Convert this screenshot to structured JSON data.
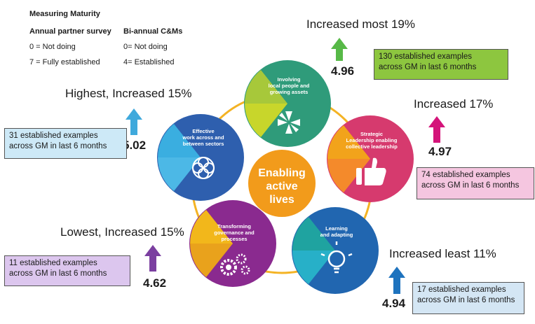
{
  "legend": {
    "title": "Measuring Maturity",
    "col1_header": "Annual partner survey",
    "col2_header": "Bi-annual C&Ms",
    "col1_rows": [
      "0 = Not doing",
      "7 = Fully established"
    ],
    "col2_rows": [
      "0= Not doing",
      "4= Established"
    ]
  },
  "center": {
    "lines": [
      "Enabling",
      "active",
      "lives"
    ]
  },
  "segments": [
    {
      "id": "involving",
      "lines": [
        "Involving",
        "local people and",
        "growing assets"
      ],
      "color": "#2f9b7a",
      "score": "4.96",
      "heading": "Increased most 19%",
      "arrow_color": "#57b947",
      "box": [
        "130 established examples",
        "across GM in last 6 months"
      ],
      "box_color": "#8dc63f"
    },
    {
      "id": "strategic",
      "lines": [
        "Strategic",
        "Leadership enabling",
        "collective leadership"
      ],
      "color": "#d63a6e",
      "score": "4.97",
      "heading": "Increased 17%",
      "arrow_color": "#d4147a",
      "box": [
        "74 established examples",
        "across GM in last 6 months"
      ],
      "box_color": "#f5c6e0"
    },
    {
      "id": "learning",
      "lines": [
        "Learning",
        "and adapting"
      ],
      "color": "#2166b0",
      "score": "4.94",
      "heading": "Increased least 11%",
      "arrow_color": "#1e73be",
      "box": [
        "17 established examples",
        "across GM in last 6 months"
      ],
      "box_color": "#d4e6f4"
    },
    {
      "id": "transforming",
      "lines": [
        "Transforming",
        "governance and",
        "processes"
      ],
      "color": "#8a2a8f",
      "score": "4.62",
      "heading": "Lowest, Increased 15%",
      "arrow_color": "#7b3fa0",
      "box": [
        "11 established examples",
        "across GM in last 6 months"
      ],
      "box_color": "#dcc6ee"
    },
    {
      "id": "effective",
      "lines": [
        "Effective",
        "work across and",
        "between sectors"
      ],
      "color": "#2e5fae",
      "score": "5.02",
      "heading": "Highest, Increased 15%",
      "arrow_color": "#3fa9dc",
      "box": [
        "31 established examples",
        "across GM in last 6 months"
      ],
      "box_color": "#cde9f7"
    }
  ]
}
